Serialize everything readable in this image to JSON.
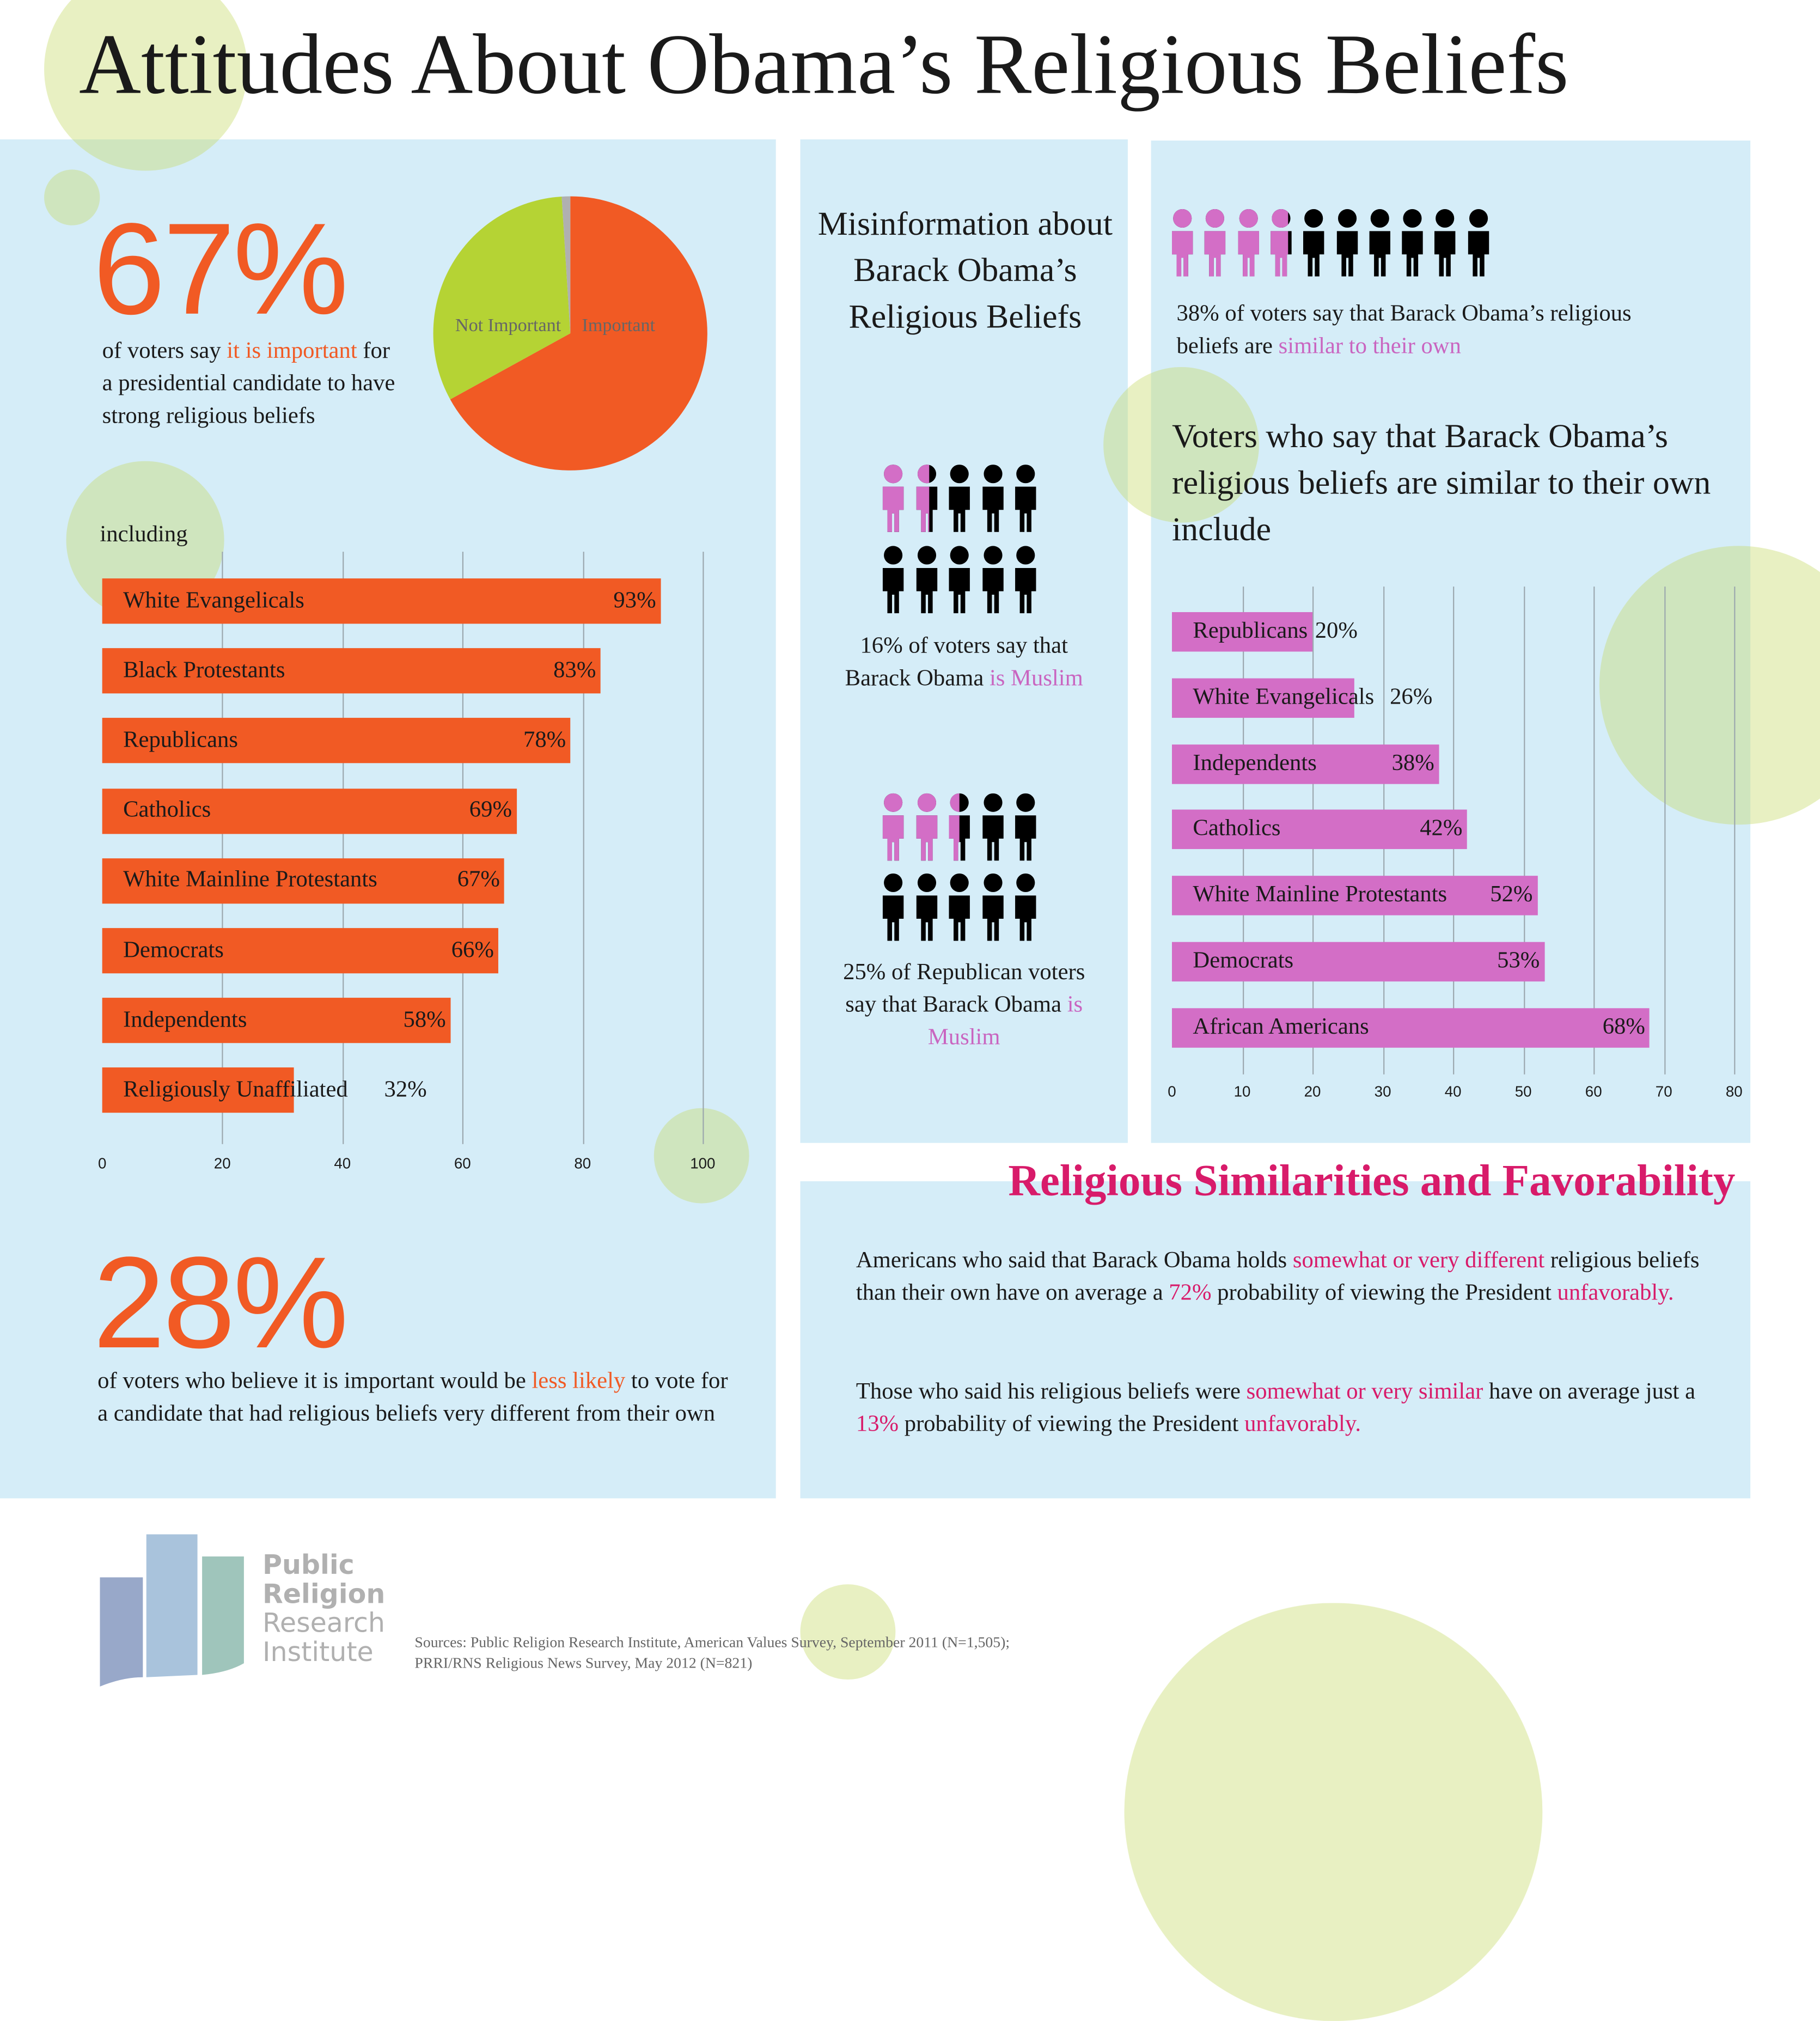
{
  "title": "Attitudes About Obama’s Religious Beliefs",
  "colors": {
    "orange": "#f15a24",
    "lime": "#b5d334",
    "pink": "#d36ec6",
    "panel": "#d5edf8",
    "heading_pink": "#d81b6a",
    "gray": "#b0b0b0"
  },
  "left": {
    "big_stat": "67%",
    "stat_text": [
      {
        "t": "of voters say "
      },
      {
        "t": "it is important",
        "hl": "o"
      },
      {
        "t": " for a presidential candidate to have strong religious beliefs"
      }
    ],
    "including": "including",
    "big_stat2": "28%",
    "stat2_text": [
      {
        "t": "of voters who believe it is important would be "
      },
      {
        "t": "less likely",
        "hl": "o"
      },
      {
        "t": " to vote for a candidate that had religious beliefs very different from their own"
      }
    ]
  },
  "middle": {
    "title": "Misinformation about Barack Obama’s Religious Beliefs",
    "icon_group_1": {
      "fraction": 0.16,
      "text": [
        {
          "t": "16% of voters say that Barack Obama "
        },
        {
          "t": "is Muslim",
          "hl": "p"
        }
      ]
    },
    "icon_group_2": {
      "fraction": 0.25,
      "text": [
        {
          "t": "25% of Republican voters say that Barack Obama "
        },
        {
          "t": "is Muslim",
          "hl": "p"
        }
      ]
    }
  },
  "right": {
    "icon_row": {
      "fraction": 0.38,
      "text": [
        {
          "t": "38% of voters say that Barack Obama’s religious beliefs are "
        },
        {
          "t": "similar to their own",
          "hl": "p"
        }
      ]
    },
    "heading": "Voters who say that Barack Obama’s religious beliefs are similar to their own include"
  },
  "favorability": {
    "heading": "Religious Similarities and Favorability",
    "para1": [
      {
        "t": "Americans who said that Barack Obama holds "
      },
      {
        "t": "somewhat or very different",
        "hl": "r"
      },
      {
        "t": " religious beliefs than their own have on average a "
      },
      {
        "t": "72%",
        "hl": "r"
      },
      {
        "t": " probability of viewing the President "
      },
      {
        "t": "unfavorably.",
        "hl": "r"
      }
    ],
    "para2": [
      {
        "t": "Those who said his religious beliefs were "
      },
      {
        "t": "somewhat or very similar",
        "hl": "r"
      },
      {
        "t": " have on average just a "
      },
      {
        "t": "13%",
        "hl": "r"
      },
      {
        "t": " probability of viewing the President "
      },
      {
        "t": "unfavorably.",
        "hl": "r"
      }
    ]
  },
  "footer": {
    "logo_lines": [
      "Public",
      "Religion",
      "Research",
      "Institute"
    ],
    "sources": [
      "Sources: Public Religion Research Institute, American Values Survey, September 2011 (N=1,505);",
      "PRRI/RNS Religious News Survey, May 2012 (N=821)"
    ]
  },
  "chart_data": [
    {
      "type": "pie",
      "categories": [
        "Important",
        "Not Important",
        "Other"
      ],
      "values": [
        67,
        32,
        1
      ],
      "labels": [
        "Important",
        "Not Important"
      ]
    },
    {
      "type": "bar",
      "orientation": "horizontal",
      "categories": [
        "White Evangelicals",
        "Black Protestants",
        "Republicans",
        "Catholics",
        "White Mainline Protestants",
        "Democrats",
        "Independents",
        "Religiously Unaffiliated"
      ],
      "values": [
        93,
        83,
        78,
        69,
        67,
        66,
        58,
        32
      ],
      "value_labels": [
        "93%",
        "83%",
        "78%",
        "69%",
        "67%",
        "66%",
        "58%",
        "32%"
      ],
      "xlim": [
        0,
        100
      ],
      "xticks": [
        "0",
        "20",
        "40",
        "60",
        "80",
        "100"
      ],
      "grid": true
    },
    {
      "type": "bar",
      "orientation": "horizontal",
      "categories": [
        "Republicans",
        "White Evangelicals",
        "Independents",
        "Catholics",
        "White Mainline Protestants",
        "Democrats",
        "African Americans"
      ],
      "values": [
        20,
        26,
        38,
        42,
        52,
        53,
        68
      ],
      "value_labels": [
        "20%",
        "26%",
        "38%",
        "42%",
        "52%",
        "53%",
        "68%"
      ],
      "xlim": [
        0,
        80
      ],
      "xticks": [
        "0",
        "10",
        "20",
        "30",
        "40",
        "50",
        "60",
        "70",
        "80"
      ],
      "grid": true
    }
  ]
}
